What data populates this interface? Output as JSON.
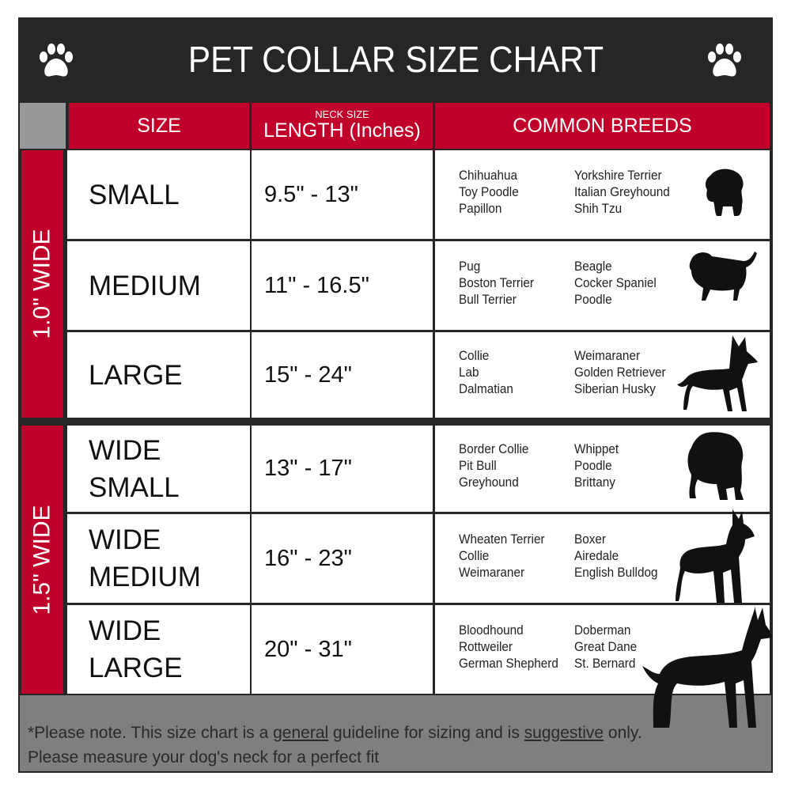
{
  "title": "PET COLLAR SIZE CHART",
  "header": {
    "size": "SIZE",
    "neck_size": "NECK SIZE",
    "length": "LENGTH (Inches)",
    "breeds": "COMMON BREEDS"
  },
  "groups": [
    {
      "label": "1.0\" WIDE"
    },
    {
      "label": "1.5\" WIDE"
    }
  ],
  "rows": [
    {
      "size": [
        "SMALL"
      ],
      "length": "9.5\" - 13\"",
      "breeds_a": [
        "Chihuahua",
        "Toy Poodle",
        "Papillon"
      ],
      "breeds_b": [
        "Yorkshire Terrier",
        "Italian Greyhound",
        "Shih Tzu"
      ]
    },
    {
      "size": [
        "MEDIUM"
      ],
      "length": "11\" - 16.5\"",
      "breeds_a": [
        "Pug",
        "Boston Terrier",
        "Bull Terrier"
      ],
      "breeds_b": [
        "Beagle",
        "Cocker Spaniel",
        "Poodle"
      ]
    },
    {
      "size": [
        "LARGE"
      ],
      "length": "15\" - 24\"",
      "breeds_a": [
        "Collie",
        "Lab",
        "Dalmatian"
      ],
      "breeds_b": [
        "Weimaraner",
        "Golden Retriever",
        "Siberian Husky"
      ]
    },
    {
      "size": [
        "WIDE",
        "SMALL"
      ],
      "length": "13\" - 17\"",
      "breeds_a": [
        "Border Collie",
        "Pit Bull",
        "Greyhound"
      ],
      "breeds_b": [
        "Whippet",
        "Poodle",
        "Brittany"
      ]
    },
    {
      "size": [
        "WIDE",
        "MEDIUM"
      ],
      "length": "16\" - 23\"",
      "breeds_a": [
        "Wheaten Terrier",
        "Collie",
        "Weimaraner"
      ],
      "breeds_b": [
        "Boxer",
        "Airedale",
        "English Bulldog"
      ]
    },
    {
      "size": [
        "WIDE",
        "LARGE"
      ],
      "length": "20\" - 31\"",
      "breeds_a": [
        "Bloodhound",
        "Rottweiler",
        "German Shepherd"
      ],
      "breeds_b": [
        "Doberman",
        "Great Dane",
        "St. Bernard"
      ]
    }
  ],
  "footer": {
    "p1": "*Please note. This size chart is a ",
    "u1": "general",
    "p2": " guideline for sizing and is ",
    "u2": "suggestive",
    "p3": " only.",
    "line2": "Please measure your dog's neck for a perfect fit"
  },
  "colors": {
    "red": "#c0002a",
    "dark": "#262626",
    "gray": "#7f7f81"
  }
}
